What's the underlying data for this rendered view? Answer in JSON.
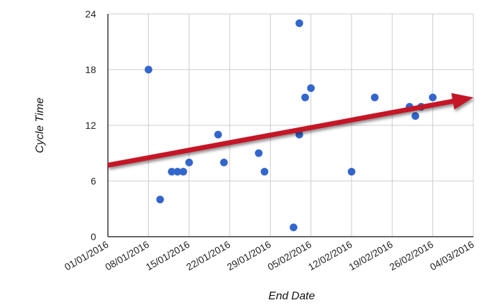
{
  "chart_data": {
    "type": "scatter",
    "xlabel": "End Date",
    "ylabel": "Cycle Time",
    "x_ticks": [
      "01/01/2016",
      "08/01/2016",
      "15/01/2016",
      "22/01/2016",
      "29/01/2016",
      "05/02/2016",
      "12/02/2016",
      "19/02/2016",
      "26/02/2016",
      "04/03/2016"
    ],
    "y_ticks": [
      0,
      6,
      12,
      18,
      24
    ],
    "xlim": [
      "01/01/2016",
      "04/03/2016"
    ],
    "ylim": [
      0,
      24
    ],
    "grid": true,
    "legend": "none",
    "points": [
      {
        "x": "08/01/2016",
        "y": 18
      },
      {
        "x": "10/01/2016",
        "y": 4
      },
      {
        "x": "12/01/2016",
        "y": 7
      },
      {
        "x": "13/01/2016",
        "y": 7
      },
      {
        "x": "14/01/2016",
        "y": 7
      },
      {
        "x": "15/01/2016",
        "y": 8
      },
      {
        "x": "20/01/2016",
        "y": 11
      },
      {
        "x": "21/01/2016",
        "y": 8
      },
      {
        "x": "27/01/2016",
        "y": 9
      },
      {
        "x": "28/01/2016",
        "y": 7
      },
      {
        "x": "02/02/2016",
        "y": 1
      },
      {
        "x": "03/02/2016",
        "y": 11
      },
      {
        "x": "03/02/2016",
        "y": 23
      },
      {
        "x": "04/02/2016",
        "y": 15
      },
      {
        "x": "05/02/2016",
        "y": 16
      },
      {
        "x": "12/02/2016",
        "y": 7
      },
      {
        "x": "16/02/2016",
        "y": 15
      },
      {
        "x": "22/02/2016",
        "y": 14
      },
      {
        "x": "23/02/2016",
        "y": 13
      },
      {
        "x": "24/02/2016",
        "y": 14
      },
      {
        "x": "26/02/2016",
        "y": 15
      }
    ],
    "trend_arrow": {
      "start": {
        "x": "01/01/2016",
        "y": 7.7
      },
      "end": {
        "x": "04/03/2016",
        "y": 15
      }
    },
    "colors": {
      "points": "#3366cc",
      "trend": "#c41426",
      "grid": "#cccccc",
      "axis": "#333333"
    }
  }
}
